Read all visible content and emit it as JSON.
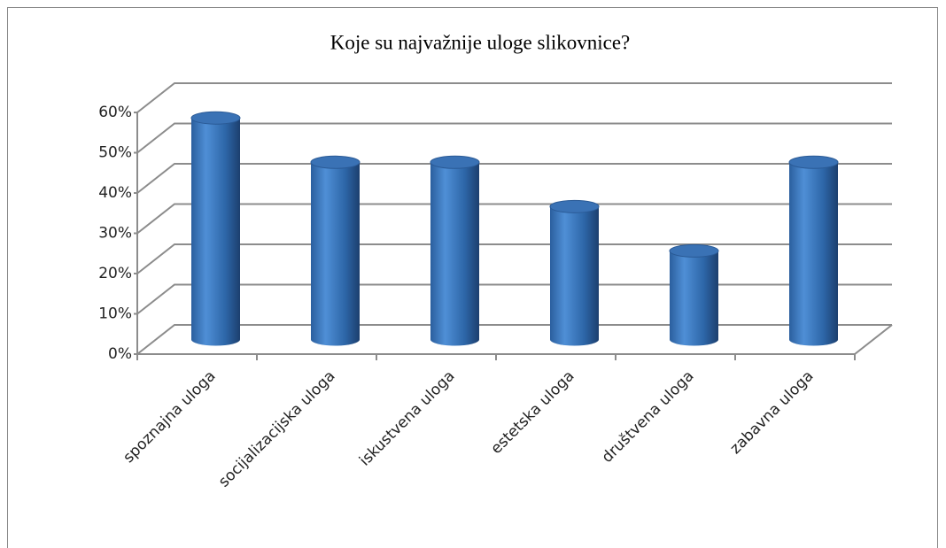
{
  "chart_data": {
    "type": "bar3d",
    "title": "Koje su najvažnije uloge slikovnice?",
    "categories": [
      "spoznajna uloga",
      "socijalizacijska uloga",
      "iskustvena uloga",
      "estetska uloga",
      "društvena uloga",
      "zabavna uloga"
    ],
    "values": [
      55,
      44,
      44,
      33,
      22,
      44
    ],
    "color": "#3a72b5",
    "ylim": [
      0,
      60
    ],
    "yticks": [
      {
        "value": 0,
        "label": "0%"
      },
      {
        "value": 10,
        "label": "10%"
      },
      {
        "value": 20,
        "label": "20%"
      },
      {
        "value": 30,
        "label": "30%"
      },
      {
        "value": 40,
        "label": "40%"
      },
      {
        "value": 50,
        "label": "50%"
      },
      {
        "value": 60,
        "label": "60%"
      }
    ],
    "grid": true
  }
}
